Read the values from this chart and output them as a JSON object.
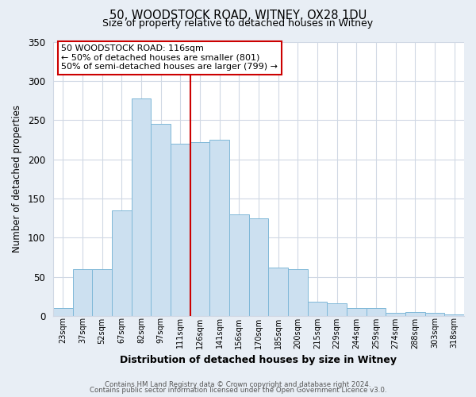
{
  "title": "50, WOODSTOCK ROAD, WITNEY, OX28 1DU",
  "subtitle": "Size of property relative to detached houses in Witney",
  "xlabel": "Distribution of detached houses by size in Witney",
  "ylabel": "Number of detached properties",
  "categories": [
    "23sqm",
    "37sqm",
    "52sqm",
    "67sqm",
    "82sqm",
    "97sqm",
    "111sqm",
    "126sqm",
    "141sqm",
    "156sqm",
    "170sqm",
    "185sqm",
    "200sqm",
    "215sqm",
    "229sqm",
    "244sqm",
    "259sqm",
    "274sqm",
    "288sqm",
    "303sqm",
    "318sqm"
  ],
  "bar_heights": [
    10,
    60,
    60,
    135,
    278,
    245,
    220,
    222,
    225,
    130,
    125,
    62,
    60,
    18,
    16,
    10,
    10,
    4,
    5,
    4,
    2
  ],
  "bar_color": "#cce0f0",
  "bar_edge_color": "#7fb8d8",
  "plot_bg_color": "#ffffff",
  "fig_bg_color": "#e8eef5",
  "grid_color": "#d0d8e4",
  "ylim": [
    0,
    350
  ],
  "yticks": [
    0,
    50,
    100,
    150,
    200,
    250,
    300,
    350
  ],
  "vline_color": "#cc0000",
  "annotation_line1": "50 WOODSTOCK ROAD: 116sqm",
  "annotation_line2": "← 50% of detached houses are smaller (801)",
  "annotation_line3": "50% of semi-detached houses are larger (799) →",
  "annotation_border_color": "#cc0000",
  "footer_line1": "Contains HM Land Registry data © Crown copyright and database right 2024.",
  "footer_line2": "Contains public sector information licensed under the Open Government Licence v3.0."
}
